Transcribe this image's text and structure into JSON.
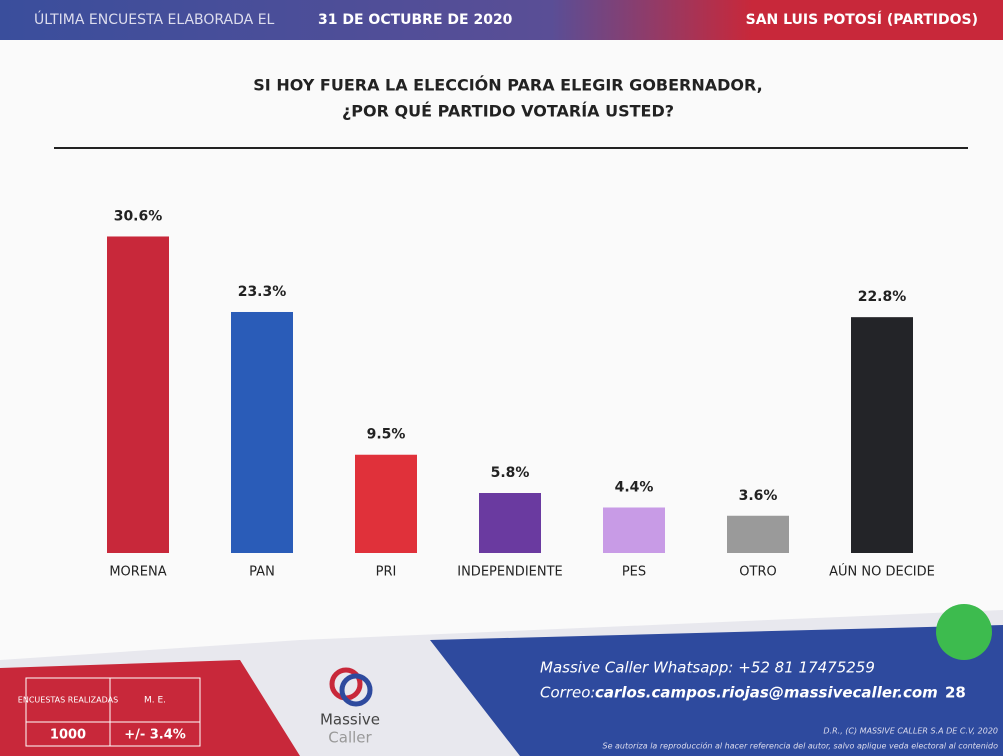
{
  "header": {
    "left_label": "ÚLTIMA ENCUESTA ELABORADA EL",
    "date": "31 DE OCTUBRE DE 2020",
    "right": "SAN LUIS POTOSÍ (PARTIDOS)"
  },
  "chart_data": {
    "type": "bar",
    "title": "SI HOY FUERA LA ELECCIÓN PARA ELEGIR GOBERNADOR,",
    "subtitle": "¿POR QUÉ PARTIDO VOTARÍA USTED?",
    "categories": [
      "MORENA",
      "PAN",
      "PRI",
      "INDEPENDIENTE",
      "PES",
      "OTRO",
      "AÚN NO DECIDE"
    ],
    "values": [
      30.6,
      23.3,
      9.5,
      5.8,
      4.4,
      3.6,
      22.8
    ],
    "value_labels": [
      "30.6%",
      "23.3%",
      "9.5%",
      "5.8%",
      "4.4%",
      "3.6%",
      "22.8%"
    ],
    "colors": [
      "#c8283a",
      "#2a5cb8",
      "#e0313a",
      "#6a3aa0",
      "#c89be6",
      "#9a9a9a",
      "#232428"
    ],
    "ylim": [
      0,
      32
    ]
  },
  "footer": {
    "table_headers": [
      "ENCUESTAS REALIZADAS",
      "M. E."
    ],
    "table_values": [
      "1000",
      "+/- 3.4%"
    ],
    "logo": [
      "Massive",
      "Caller"
    ],
    "whatsapp": "Massive Caller Whatsapp:  +52 81 17475259",
    "email_label": "Correo:",
    "email": "carlos.campos.riojas@massivecaller.com",
    "page": "28",
    "copyright": "D.R., (C) MASSIVE CALLER S.A DE C.V, 2020",
    "notice": "Se autoriza la reproducción al hacer referencia del autor, salvo aplique veda electoral al contenido"
  }
}
